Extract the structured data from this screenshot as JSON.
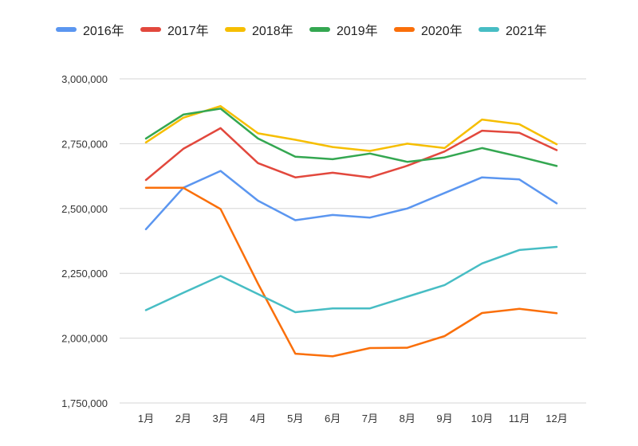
{
  "chart_data": {
    "type": "line",
    "title": "",
    "xlabel": "",
    "ylabel": "",
    "categories": [
      "1月",
      "2月",
      "3月",
      "4月",
      "5月",
      "6月",
      "7月",
      "8月",
      "9月",
      "10月",
      "11月",
      "12月"
    ],
    "ylim": [
      1750000,
      3000000
    ],
    "yticks": [
      1750000,
      2000000,
      2250000,
      2500000,
      2750000,
      3000000
    ],
    "ytick_labels": [
      "1,750,000",
      "2,000,000",
      "2,250,000",
      "2,500,000",
      "2,750,000",
      "3,000,000"
    ],
    "grid": true,
    "legend_position": "top",
    "series": [
      {
        "name": "2016年",
        "color": "#5B96F0",
        "values": [
          2420000,
          2580000,
          2645000,
          2530000,
          2455000,
          2475000,
          2465000,
          2500000,
          2560000,
          2620000,
          2612000,
          2520000
        ]
      },
      {
        "name": "2017年",
        "color": "#E2483D",
        "values": [
          2610000,
          2730000,
          2810000,
          2675000,
          2620000,
          2638000,
          2620000,
          2665000,
          2720000,
          2800000,
          2792000,
          2725000
        ]
      },
      {
        "name": "2018年",
        "color": "#F6BE00",
        "values": [
          2755000,
          2850000,
          2895000,
          2790000,
          2765000,
          2737000,
          2722000,
          2750000,
          2733000,
          2843000,
          2825000,
          2748000
        ]
      },
      {
        "name": "2019年",
        "color": "#34A751",
        "values": [
          2770000,
          2862000,
          2885000,
          2770000,
          2700000,
          2690000,
          2712000,
          2680000,
          2697000,
          2733000,
          2700000,
          2664000
        ]
      },
      {
        "name": "2020年",
        "color": "#FA6F0A",
        "values": [
          2580000,
          2580000,
          2498000,
          2210000,
          1940000,
          1930000,
          1962000,
          1963000,
          2008000,
          2097000,
          2113000,
          2096000
        ]
      },
      {
        "name": "2021年",
        "color": "#47BDC4",
        "values": [
          2108000,
          2175000,
          2240000,
          2170000,
          2100000,
          2115000,
          2115000,
          2160000,
          2205000,
          2288000,
          2340000,
          2352000
        ]
      }
    ]
  }
}
